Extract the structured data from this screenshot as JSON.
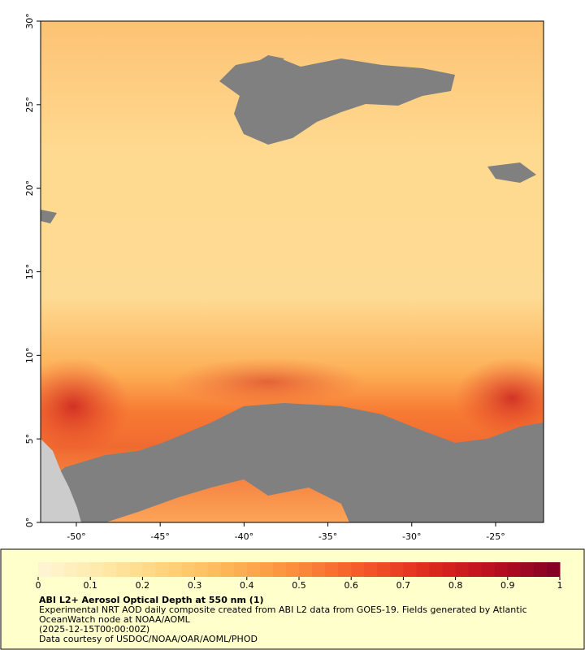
{
  "map": {
    "xlim": [
      -52.13,
      -22.14
    ],
    "ylim": [
      0,
      30
    ],
    "xticks": [
      {
        "value": -50,
        "label": "-50°"
      },
      {
        "value": -45,
        "label": "-45°"
      },
      {
        "value": -40,
        "label": "-40°"
      },
      {
        "value": -35,
        "label": "-35°"
      },
      {
        "value": -30,
        "label": "-30°"
      },
      {
        "value": -25,
        "label": "-25°"
      }
    ],
    "yticks": [
      {
        "value": 0,
        "label": "0°"
      },
      {
        "value": 5,
        "label": "5°"
      },
      {
        "value": 10,
        "label": "10°"
      },
      {
        "value": 15,
        "label": "15°"
      },
      {
        "value": 20,
        "label": "20°"
      },
      {
        "value": 25,
        "label": "25°"
      },
      {
        "value": 30,
        "label": "30°"
      }
    ]
  },
  "colorbar": {
    "lim": [
      0,
      1
    ],
    "ticks": [
      0,
      0.1,
      0.2,
      0.3,
      0.4,
      0.5,
      0.6,
      0.7,
      0.8,
      0.9,
      1
    ],
    "colors": [
      "#fff5d6",
      "#ffe9a8",
      "#fed27a",
      "#fdb254",
      "#fc8a3c",
      "#f4572a",
      "#de2a1e",
      "#b80e1f",
      "#800026"
    ]
  },
  "caption": {
    "title": "ABI L2+ Aerosol Optical Depth at 550 nm (1)",
    "lines": [
      "Experimental NRT AOD daily composite created from ABI L2 data from GOES-19. Fields generated by Atlantic",
      "OceanWatch node at NOAA/AOML",
      "(2025-12-15T00:00:00Z)",
      "Data courtesy of USDOC/NOAA/OAR/AOML/PHOD"
    ]
  }
}
